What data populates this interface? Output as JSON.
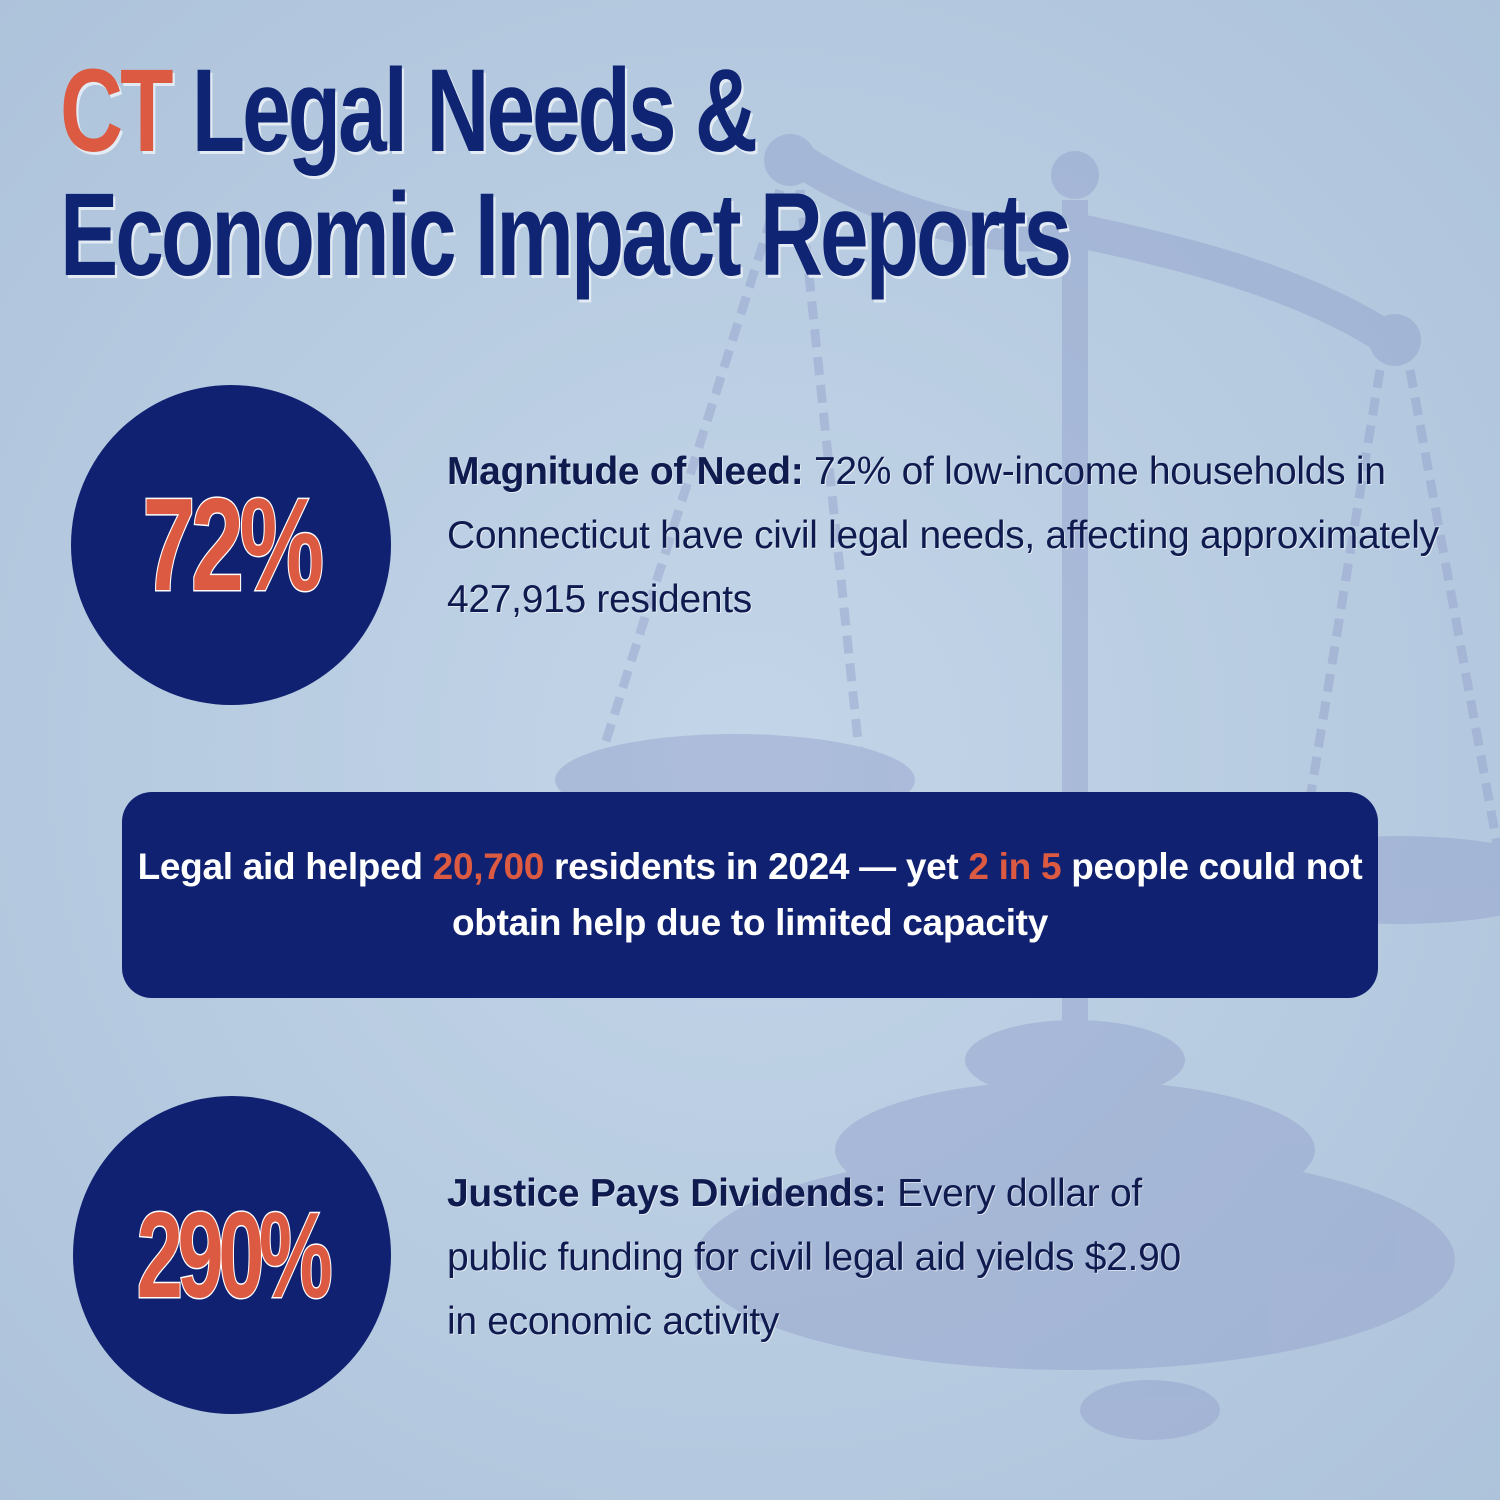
{
  "title": {
    "line1_accent": "CT",
    "line1_rest": " Legal Needs &",
    "line2": "Economic Impact Reports"
  },
  "stat_1": {
    "value": "72%",
    "label": "Magnitude of Need:",
    "text": " 72% of low-income households in Connecticut have civil legal needs, affecting approximately 427,915 residents"
  },
  "banner": {
    "part1": "Legal aid helped ",
    "highlight1": "20,700",
    "part2": " residents in 2024 — yet ",
    "highlight2": "2 in 5",
    "part3": " people could not obtain help due to limited capacity"
  },
  "stat_2": {
    "value": "290%",
    "label": "Justice Pays Dividends:",
    "text": " Every dollar of public funding for civil legal aid yields $2.90 in economic activity"
  },
  "colors": {
    "background": "#b9cde1",
    "navy": "#0f2170",
    "accent": "#dc5a42",
    "text": "#0f1a4f"
  },
  "background_image": "scales-of-justice"
}
